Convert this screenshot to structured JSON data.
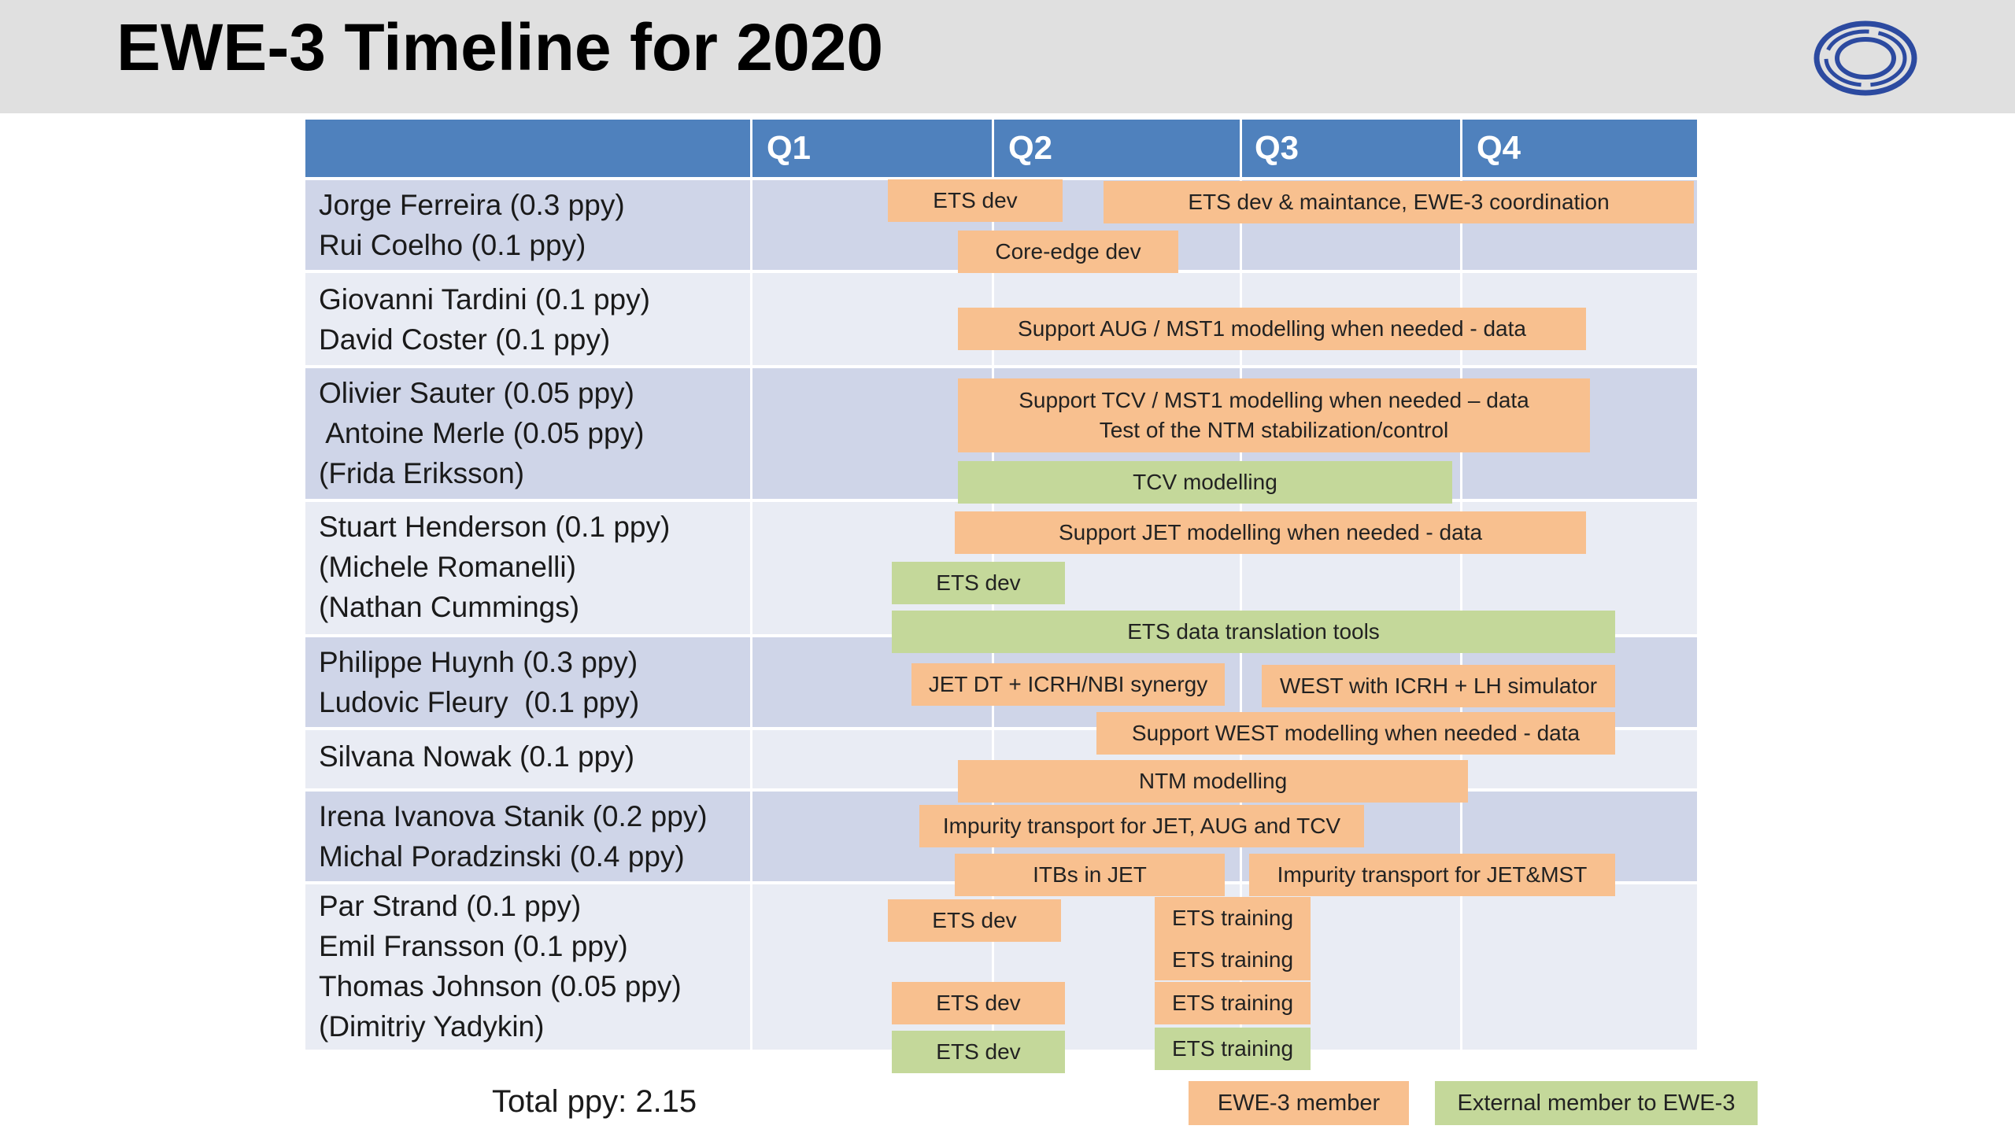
{
  "slide": {
    "title": "EWE-3 Timeline for 2020",
    "logo_icon": "concentric-rings-logo-icon",
    "quarters": [
      "Q1",
      "Q2",
      "Q3",
      "Q4"
    ],
    "rows": [
      {
        "names": "Jorge Ferreira (0.3 ppy)\nRui Coelho (0.1 ppy)"
      },
      {
        "names": "Giovanni Tardini (0.1 ppy)\nDavid Coster (0.1 ppy)"
      },
      {
        "names": "Olivier Sauter (0.05 ppy)\n Antoine Merle (0.05 ppy)\n(Frida Eriksson)"
      },
      {
        "names": "Stuart Henderson (0.1 ppy)\n(Michele Romanelli)\n(Nathan Cummings)"
      },
      {
        "names": "Philippe Huynh (0.3 ppy)\nLudovic Fleury  (0.1 ppy)"
      },
      {
        "names": "Silvana Nowak (0.1 ppy)"
      },
      {
        "names": "Irena Ivanova Stanik (0.2 ppy)\nMichal Poradzinski (0.4 ppy)"
      },
      {
        "names": "Par Strand (0.1 ppy)\nEmil Fransson (0.1 ppy)\nThomas Johnson (0.05 ppy)\n(Dimitriy Yadykin)"
      }
    ],
    "bars": [
      {
        "label": "ETS dev",
        "kind": "member"
      },
      {
        "label": "ETS dev & maintance, EWE-3 coordination",
        "kind": "member"
      },
      {
        "label": "Core-edge dev",
        "kind": "member"
      },
      {
        "label": "Support AUG / MST1 modelling when needed - data",
        "kind": "member"
      },
      {
        "label": "Support TCV / MST1 modelling when needed – data",
        "label2": "Test of the NTM stabilization/control",
        "kind": "member"
      },
      {
        "label": "TCV modelling",
        "kind": "external"
      },
      {
        "label": "Support JET modelling when needed - data",
        "kind": "member"
      },
      {
        "label": "ETS dev",
        "kind": "external"
      },
      {
        "label": "ETS data translation tools",
        "kind": "external"
      },
      {
        "label": "JET DT + ICRH/NBI synergy",
        "kind": "member"
      },
      {
        "label": "WEST with ICRH + LH simulator",
        "kind": "member"
      },
      {
        "label": "Support WEST modelling when needed - data",
        "kind": "member"
      },
      {
        "label": "NTM modelling",
        "kind": "member"
      },
      {
        "label": "Impurity transport for JET, AUG and TCV",
        "kind": "member"
      },
      {
        "label": "ITBs in  JET",
        "kind": "member"
      },
      {
        "label": "Impurity transport for JET&MST",
        "kind": "member"
      },
      {
        "label": "ETS dev",
        "kind": "member"
      },
      {
        "label": "ETS training",
        "kind": "member"
      },
      {
        "label": "ETS training",
        "kind": "member"
      },
      {
        "label": "ETS dev",
        "kind": "member"
      },
      {
        "label": "ETS training",
        "kind": "member"
      },
      {
        "label": "ETS dev",
        "kind": "external"
      },
      {
        "label": "ETS training",
        "kind": "external"
      }
    ],
    "total": "Total ppy: 2.15",
    "legend": {
      "member": "EWE-3 member",
      "external": "External member to EWE-3"
    },
    "colors": {
      "header_bg": "#e0e0e0",
      "quarter_header": "#4f81bd",
      "row_dark": "#cfd5e8",
      "row_light": "#e9ecf4",
      "member": "#f8c08f",
      "external": "#c4d89a"
    }
  }
}
